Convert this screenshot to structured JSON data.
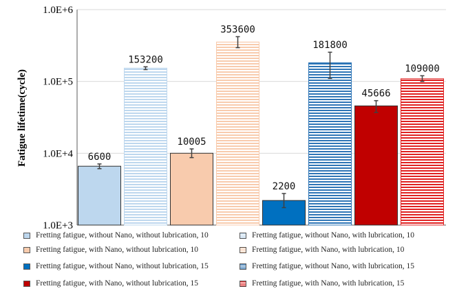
{
  "chart_data": {
    "type": "bar",
    "y_scale": "log",
    "ylabel": "Fatigue lifetime(cycle)",
    "ylim": [
      1000,
      1000000
    ],
    "y_ticks": [
      {
        "value": 1000000,
        "label": "1.0E+6"
      },
      {
        "value": 100000,
        "label": "1.0E+5"
      },
      {
        "value": 10000,
        "label": "1.0E+4"
      },
      {
        "value": 1000,
        "label": "1.0E+3"
      }
    ],
    "grid": true,
    "legend_position": "bottom",
    "series": [
      {
        "name": "Fretting fatigue, without Nano, without lubrication, 10",
        "value": 6600,
        "label": "6600",
        "error": [
          6100,
          7100
        ],
        "color": "#bdd7ee",
        "pattern": "solid"
      },
      {
        "name": "Fretting fatigue, without Nano, with lubrication, 10",
        "value": 153200,
        "label": "153200",
        "error": [
          146000,
          160000
        ],
        "color": "#bdd7ee",
        "pattern": "stripes"
      },
      {
        "name": "Fretting fatigue, with Nano, without lubrication, 10",
        "value": 10005,
        "label": "10005",
        "error": [
          8700,
          11500
        ],
        "color": "#f8cbad",
        "pattern": "solid"
      },
      {
        "name": "Fretting fatigue, with Nano, with lubrication, 10",
        "value": 353600,
        "label": "353600",
        "error": [
          295000,
          420000
        ],
        "color": "#f8cbad",
        "pattern": "stripes"
      },
      {
        "name": "Fretting fatigue, without Nano, without lubrication, 15",
        "value": 2200,
        "label": "2200",
        "error": [
          1750,
          2750
        ],
        "color": "#0070c0",
        "pattern": "solid"
      },
      {
        "name": "Fretting fatigue, without Nano, with lubrication, 15",
        "value": 181800,
        "label": "181800",
        "error": [
          110000,
          255000
        ],
        "color": "#2e75b6",
        "pattern": "stripes"
      },
      {
        "name": "Fretting fatigue, with Nano, without lubrication, 15",
        "value": 45666,
        "label": "45666",
        "error": [
          37000,
          54000
        ],
        "color": "#c00000",
        "pattern": "solid"
      },
      {
        "name": "Fretting fatigue, with Nano, with lubrication, 15",
        "value": 109000,
        "label": "109000",
        "error": [
          100000,
          120000
        ],
        "color": "#e02020",
        "pattern": "stripes"
      }
    ]
  }
}
